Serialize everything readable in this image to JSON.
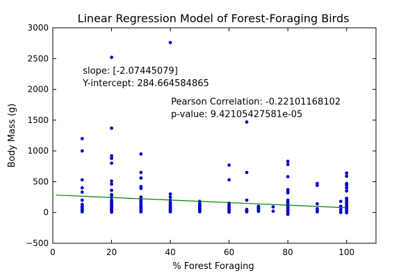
{
  "chart_data": {
    "type": "scatter",
    "title": "Linear Regression Model of Forest-Foraging Birds",
    "xlabel": "% Forest Foraging",
    "ylabel": "Body Mass (g)",
    "xlim": [
      0,
      110
    ],
    "ylim": [
      -500,
      3000
    ],
    "xticks": [
      0,
      20,
      40,
      60,
      80,
      100
    ],
    "yticks": [
      -500,
      0,
      500,
      1000,
      1500,
      2000,
      2500,
      3000
    ],
    "grid": false,
    "colors": {
      "points": "#0000cc",
      "line": "#007f00"
    },
    "annotations": [
      {
        "lines": [
          "slope: [-2.07445079]",
          "Y-intercept: 284.664584865"
        ],
        "x": 10,
        "y": 2300
      },
      {
        "lines": [
          "Pearson Correlation: -0.22101168102",
          "p-value: 9.42105427581e-05"
        ],
        "x": 40,
        "y": 1800
      }
    ],
    "regression": {
      "slope": -2.07445079,
      "intercept": 284.664584865,
      "x_range": [
        1,
        100
      ]
    },
    "points": [
      [
        10,
        1200
      ],
      [
        10,
        1000
      ],
      [
        10,
        530
      ],
      [
        10,
        400
      ],
      [
        10,
        330
      ],
      [
        10,
        200
      ],
      [
        10,
        130
      ],
      [
        10,
        100
      ],
      [
        10,
        80
      ],
      [
        10,
        60
      ],
      [
        10,
        40
      ],
      [
        10,
        20
      ],
      [
        10,
        10
      ],
      [
        20,
        2520
      ],
      [
        20,
        1370
      ],
      [
        20,
        920
      ],
      [
        20,
        880
      ],
      [
        20,
        800
      ],
      [
        20,
        510
      ],
      [
        20,
        460
      ],
      [
        20,
        360
      ],
      [
        20,
        290
      ],
      [
        20,
        250
      ],
      [
        20,
        200
      ],
      [
        20,
        170
      ],
      [
        20,
        150
      ],
      [
        20,
        130
      ],
      [
        20,
        110
      ],
      [
        20,
        90
      ],
      [
        20,
        70
      ],
      [
        20,
        50
      ],
      [
        20,
        30
      ],
      [
        20,
        15
      ],
      [
        20,
        5
      ],
      [
        30,
        950
      ],
      [
        30,
        650
      ],
      [
        30,
        560
      ],
      [
        30,
        420
      ],
      [
        30,
        390
      ],
      [
        30,
        250
      ],
      [
        30,
        220
      ],
      [
        30,
        200
      ],
      [
        30,
        180
      ],
      [
        30,
        150
      ],
      [
        30,
        120
      ],
      [
        30,
        100
      ],
      [
        30,
        80
      ],
      [
        30,
        60
      ],
      [
        30,
        40
      ],
      [
        30,
        20
      ],
      [
        30,
        10
      ],
      [
        40,
        2760
      ],
      [
        40,
        300
      ],
      [
        40,
        250
      ],
      [
        40,
        200
      ],
      [
        40,
        160
      ],
      [
        40,
        130
      ],
      [
        40,
        100
      ],
      [
        40,
        80
      ],
      [
        40,
        60
      ],
      [
        40,
        40
      ],
      [
        40,
        20
      ],
      [
        40,
        10
      ],
      [
        50,
        180
      ],
      [
        50,
        150
      ],
      [
        50,
        120
      ],
      [
        50,
        100
      ],
      [
        50,
        80
      ],
      [
        50,
        60
      ],
      [
        50,
        40
      ],
      [
        50,
        25
      ],
      [
        50,
        10
      ],
      [
        60,
        770
      ],
      [
        60,
        530
      ],
      [
        60,
        150
      ],
      [
        60,
        120
      ],
      [
        60,
        90
      ],
      [
        60,
        60
      ],
      [
        60,
        40
      ],
      [
        60,
        20
      ],
      [
        60,
        5
      ],
      [
        66,
        1470
      ],
      [
        66,
        650
      ],
      [
        66,
        200
      ],
      [
        66,
        50
      ],
      [
        66,
        30
      ],
      [
        66,
        20
      ],
      [
        66,
        10
      ],
      [
        70,
        100
      ],
      [
        70,
        80
      ],
      [
        70,
        60
      ],
      [
        70,
        40
      ],
      [
        70,
        20
      ],
      [
        75,
        90
      ],
      [
        75,
        20
      ],
      [
        80,
        830
      ],
      [
        80,
        780
      ],
      [
        80,
        580
      ],
      [
        80,
        370
      ],
      [
        80,
        340
      ],
      [
        80,
        320
      ],
      [
        80,
        200
      ],
      [
        80,
        170
      ],
      [
        80,
        140
      ],
      [
        80,
        120
      ],
      [
        80,
        100
      ],
      [
        80,
        80
      ],
      [
        80,
        60
      ],
      [
        80,
        40
      ],
      [
        80,
        20
      ],
      [
        80,
        5
      ],
      [
        80,
        -30
      ],
      [
        90,
        470
      ],
      [
        90,
        440
      ],
      [
        90,
        140
      ],
      [
        90,
        60
      ],
      [
        90,
        30
      ],
      [
        90,
        10
      ],
      [
        98,
        180
      ],
      [
        98,
        100
      ],
      [
        98,
        50
      ],
      [
        98,
        10
      ],
      [
        98,
        0
      ],
      [
        100,
        640
      ],
      [
        100,
        590
      ],
      [
        100,
        470
      ],
      [
        100,
        440
      ],
      [
        100,
        400
      ],
      [
        100,
        350
      ],
      [
        100,
        230
      ],
      [
        100,
        200
      ],
      [
        100,
        170
      ],
      [
        100,
        140
      ],
      [
        100,
        110
      ],
      [
        100,
        90
      ],
      [
        100,
        70
      ],
      [
        100,
        50
      ],
      [
        100,
        30
      ],
      [
        100,
        15
      ],
      [
        100,
        5
      ],
      [
        100,
        -5
      ]
    ]
  }
}
